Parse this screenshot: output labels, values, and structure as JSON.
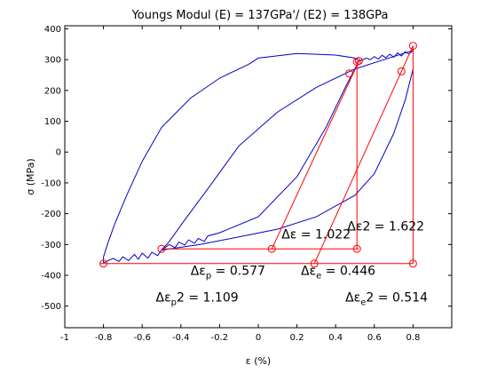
{
  "chart_data": {
    "type": "line",
    "title": "Youngs Modul (E) = 137GPa'/ (E2) = 138GPa",
    "xlabel": "ε (%)",
    "ylabel": "σ (MPa)",
    "xlim": [
      -1,
      1.0
    ],
    "ylim": [
      -570,
      410
    ],
    "xticks": [
      -1,
      -0.8,
      -0.6,
      -0.4,
      -0.2,
      0,
      0.2,
      0.4,
      0.6,
      0.8
    ],
    "xtick_labels": [
      "-1",
      "-0.8",
      "-0.6",
      "-0.4",
      "-0.2",
      "0",
      "0.2",
      "0.4",
      "0.6",
      "0.8"
    ],
    "yticks": [
      -500,
      -400,
      -300,
      -200,
      -100,
      0,
      100,
      200,
      300,
      400
    ],
    "ytick_labels": [
      "-500",
      "-400",
      "-300",
      "-200",
      "-100",
      "0",
      "100",
      "200",
      "300",
      "400"
    ],
    "grid": false,
    "colors": {
      "curve": "#0000c8",
      "construction": "#ff0000"
    },
    "series": [
      {
        "x": [
          -0.05,
          -0.2,
          -0.35,
          -0.5,
          -0.6,
          -0.68,
          -0.74,
          -0.78,
          -0.8,
          -0.8
        ],
        "y": [
          285,
          240,
          175,
          80,
          -30,
          -140,
          -230,
          -300,
          -340,
          -360
        ]
      },
      {
        "x": [
          -0.8,
          -0.75,
          -0.72,
          -0.7,
          -0.67,
          -0.64,
          -0.62,
          -0.6,
          -0.57,
          -0.55,
          -0.52,
          -0.5,
          -0.3,
          -0.1,
          0.1,
          0.3,
          0.5,
          0.6,
          0.7,
          0.76,
          0.8
        ],
        "y": [
          -360,
          -345,
          -355,
          -340,
          -352,
          -332,
          -348,
          -328,
          -344,
          -325,
          -336,
          -318,
          -300,
          -275,
          -250,
          -210,
          -140,
          -70,
          60,
          170,
          270
        ]
      },
      {
        "x": [
          0.8,
          0.7,
          0.5,
          0.3,
          0.1,
          -0.1,
          -0.25,
          -0.38,
          -0.46,
          -0.5
        ],
        "y": [
          330,
          310,
          270,
          210,
          130,
          20,
          -110,
          -220,
          -290,
          -318
        ]
      },
      {
        "x": [
          -0.5,
          -0.46,
          -0.43,
          -0.41,
          -0.38,
          -0.36,
          -0.33,
          -0.31,
          -0.28,
          -0.26,
          -0.2,
          0.0,
          0.2,
          0.35,
          0.45,
          0.52
        ],
        "y": [
          -318,
          -300,
          -310,
          -292,
          -302,
          -285,
          -296,
          -280,
          -290,
          -272,
          -262,
          -210,
          -80,
          80,
          210,
          295
        ]
      },
      {
        "x": [
          0.52,
          0.5,
          0.4,
          0.2,
          0.0,
          -0.05
        ],
        "y": [
          295,
          305,
          315,
          320,
          305,
          285
        ]
      },
      {
        "x": [
          0.52,
          0.56,
          0.58,
          0.6,
          0.62,
          0.64,
          0.66,
          0.68,
          0.7,
          0.72,
          0.74,
          0.76,
          0.78,
          0.8
        ],
        "y": [
          295,
          305,
          300,
          310,
          302,
          314,
          306,
          318,
          308,
          322,
          312,
          326,
          318,
          330
        ]
      }
    ],
    "construction_lines": [
      {
        "x": [
          -0.82,
          0.8
        ],
        "y": [
          -362,
          -362
        ]
      },
      {
        "x": [
          -0.5,
          0.52
        ],
        "y": [
          -314,
          -314
        ]
      },
      {
        "x": [
          0.8,
          0.8
        ],
        "y": [
          -362,
          345
        ]
      },
      {
        "x": [
          0.51,
          0.51
        ],
        "y": [
          -314,
          295
        ]
      },
      {
        "x": [
          0.07,
          0.52
        ],
        "y": [
          -314,
          295
        ]
      },
      {
        "x": [
          0.29,
          0.8
        ],
        "y": [
          -362,
          345
        ]
      }
    ],
    "markers": [
      {
        "x": -0.8,
        "y": -362
      },
      {
        "x": -0.5,
        "y": -314
      },
      {
        "x": 0.07,
        "y": -314
      },
      {
        "x": 0.51,
        "y": -314
      },
      {
        "x": 0.29,
        "y": -362
      },
      {
        "x": 0.8,
        "y": -362
      },
      {
        "x": 0.47,
        "y": 255
      },
      {
        "x": 0.51,
        "y": 293
      },
      {
        "x": 0.52,
        "y": 296
      },
      {
        "x": 0.74,
        "y": 262
      },
      {
        "x": 0.8,
        "y": 345
      }
    ],
    "annotations": [
      {
        "prefix": "Δε = ",
        "sub": "",
        "suffix": "1.022",
        "x": 0.12,
        "y": -280
      },
      {
        "prefix": "Δε2 = ",
        "sub": "",
        "suffix": "1.622",
        "x": 0.46,
        "y": -255
      },
      {
        "prefix": "Δε",
        "sub": "p",
        "suffix": " = 0.577",
        "x": -0.35,
        "y": -398
      },
      {
        "prefix": "Δε",
        "sub": "e",
        "suffix": " = 0.446",
        "x": 0.22,
        "y": -398
      },
      {
        "prefix": "Δε",
        "sub": "p",
        "suffix": "2 = 1.109",
        "x": -0.53,
        "y": -485
      },
      {
        "prefix": "Δε",
        "sub": "e",
        "suffix": "2 = 0.514",
        "x": 0.45,
        "y": -485
      }
    ]
  }
}
